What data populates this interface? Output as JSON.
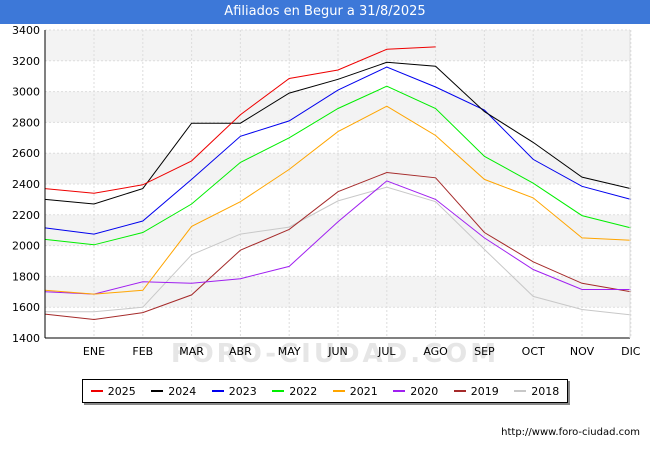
{
  "header": {
    "title": "Afiliados en Begur a 31/8/2025"
  },
  "footer": {
    "source": "http://www.foro-ciudad.com"
  },
  "watermark": "FORO-CIUDAD.COM",
  "chart_data": {
    "type": "line",
    "title": "Afiliados en Begur a 31/8/2025",
    "xlabel": "",
    "ylabel": "",
    "categories": [
      "ENE",
      "FEB",
      "MAR",
      "ABR",
      "MAY",
      "JUN",
      "JUL",
      "AGO",
      "SEP",
      "OCT",
      "NOV",
      "DIC"
    ],
    "ylim": [
      1400,
      3400
    ],
    "yticks": [
      1400,
      1600,
      1800,
      2000,
      2200,
      2400,
      2600,
      2800,
      3000,
      3200,
      3400
    ],
    "grid": "horizontal bands",
    "legend_position": "bottom",
    "series": [
      {
        "name": "2025",
        "color": "#ee0000",
        "values": [
          2340,
          2395,
          2550,
          2850,
          3085,
          3140,
          3275,
          3290,
          null,
          null,
          null,
          null
        ]
      },
      {
        "name": "2024",
        "color": "#000000",
        "values": [
          2270,
          2370,
          2795,
          2795,
          2990,
          3080,
          3190,
          3165,
          2870,
          2670,
          2445,
          2370
        ]
      },
      {
        "name": "2023",
        "color": "#0000ee",
        "values": [
          2075,
          2160,
          2430,
          2710,
          2810,
          3010,
          3160,
          3030,
          2880,
          2560,
          2385,
          2300
        ]
      },
      {
        "name": "2022",
        "color": "#00ee00",
        "values": [
          2005,
          2085,
          2270,
          2540,
          2700,
          2890,
          3035,
          2890,
          2580,
          2405,
          2195,
          2115
        ]
      },
      {
        "name": "2021",
        "color": "#ffa500",
        "values": [
          1685,
          1710,
          2125,
          2285,
          2495,
          2740,
          2905,
          2715,
          2430,
          2310,
          2050,
          2035
        ]
      },
      {
        "name": "2020",
        "color": "#a020f0",
        "values": [
          1685,
          1765,
          1755,
          1785,
          1865,
          2155,
          2420,
          2300,
          2050,
          1845,
          1715,
          1715
        ]
      },
      {
        "name": "2019",
        "color": "#a52a2a",
        "values": [
          1520,
          1565,
          1680,
          1970,
          2105,
          2350,
          2475,
          2440,
          2085,
          1895,
          1755,
          1700
        ]
      },
      {
        "name": "2018",
        "color": "#c8c8c8",
        "values": [
          1570,
          1600,
          1940,
          2075,
          2120,
          2290,
          2380,
          2285,
          1975,
          1670,
          1585,
          1550
        ]
      }
    ],
    "left_edge_values": {
      "2025": 2370,
      "2024": 2300,
      "2023": 2115,
      "2022": 2040,
      "2021": 1710,
      "2020": 1700,
      "2019": 1555,
      "2018": 1570
    }
  }
}
